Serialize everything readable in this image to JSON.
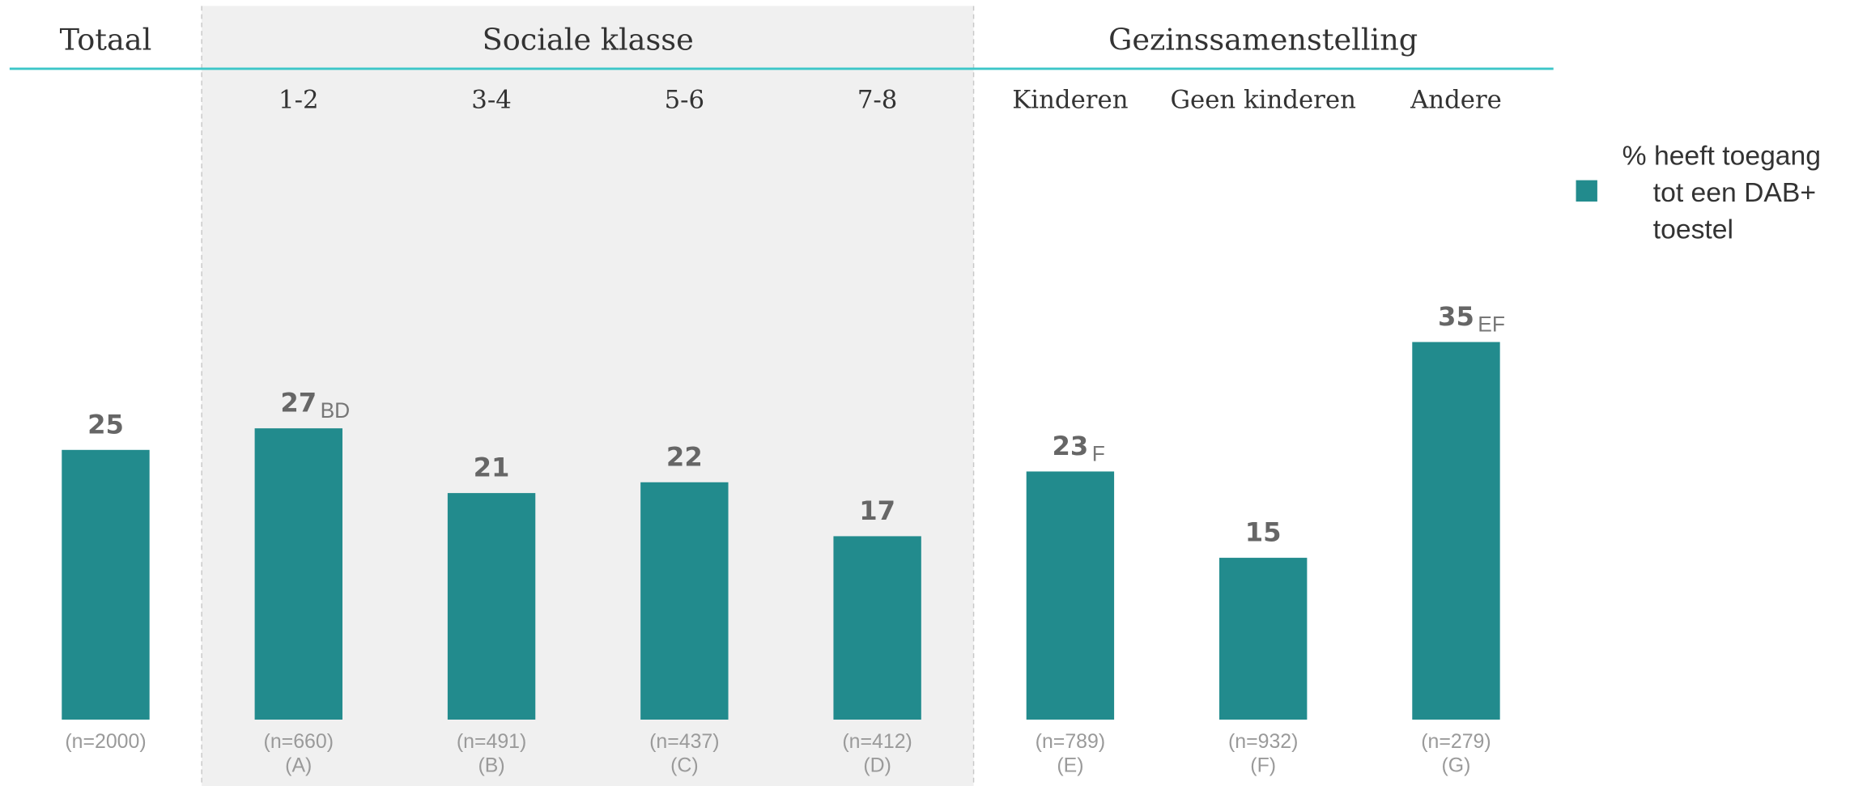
{
  "chart_data": {
    "type": "bar",
    "series": [
      {
        "name": "% heeft toegang tot een DAB+ toestel",
        "color": "#228b8d"
      }
    ],
    "groups": [
      {
        "label": "Totaal",
        "categories": [
          null
        ],
        "values": [
          25
        ],
        "significance": [
          null
        ],
        "sample_sizes": [
          "(n=2000)"
        ],
        "codes": [
          null
        ]
      },
      {
        "label": "Sociale klasse",
        "categories": [
          "1-2",
          "3-4",
          "5-6",
          "7-8"
        ],
        "values": [
          27,
          21,
          22,
          17
        ],
        "significance": [
          "BD",
          null,
          null,
          null
        ],
        "sample_sizes": [
          "(n=660)",
          "(n=491)",
          "(n=437)",
          "(n=412)"
        ],
        "codes": [
          "(A)",
          "(B)",
          "(C)",
          "(D)"
        ]
      },
      {
        "label": "Gezinssamenstelling",
        "categories": [
          "Kinderen",
          "Geen kinderen",
          "Andere"
        ],
        "values": [
          23,
          15,
          35
        ],
        "significance": [
          "F",
          null,
          "EF"
        ],
        "sample_sizes": [
          "(n=789)",
          "(n=932)",
          "(n=279)"
        ],
        "codes": [
          "(E)",
          "(F)",
          "(G)"
        ]
      }
    ],
    "legend": "right"
  }
}
